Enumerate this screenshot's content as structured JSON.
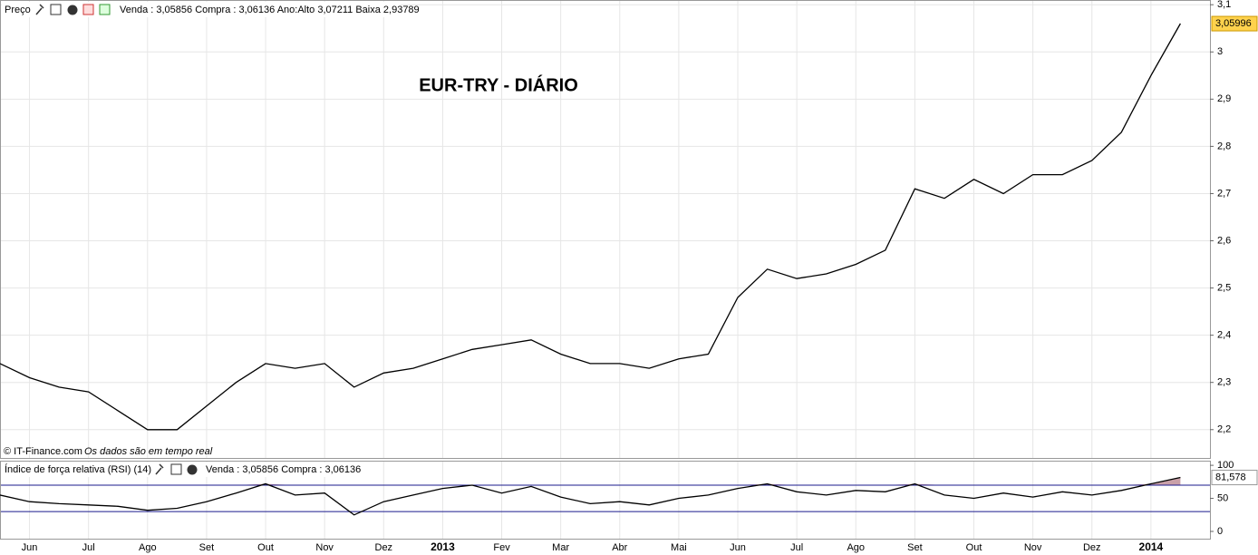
{
  "chart_data": {
    "type": "line",
    "title": "EUR-TRY - DIÁRIO",
    "panel_label": "Preço",
    "quote_text": "Venda : 3,05856 Compra : 3,06136 Ano:Alto 3,07211 Baixa 2,93789",
    "copyright": "© IT-Finance.com",
    "realtime_note": "Os dados são em tempo real",
    "categories": [
      null,
      "Jun",
      null,
      "Jul",
      null,
      "Ago",
      null,
      "Set",
      null,
      "Out",
      null,
      "Nov",
      null,
      "Dez",
      null,
      "2013",
      null,
      "Fev",
      null,
      "Mar",
      null,
      "Abr",
      null,
      "Mai",
      null,
      "Jun",
      null,
      "Jul",
      null,
      "Ago",
      null,
      "Set",
      null,
      "Out",
      null,
      "Nov",
      null,
      "Dez",
      null,
      "2014",
      null
    ],
    "series": [
      {
        "name": "EUR-TRY",
        "color": "#000000",
        "values": [
          2.34,
          2.31,
          2.29,
          2.28,
          2.24,
          2.2,
          2.2,
          2.25,
          2.3,
          2.34,
          2.33,
          2.34,
          2.29,
          2.32,
          2.33,
          2.35,
          2.37,
          2.38,
          2.39,
          2.36,
          2.34,
          2.34,
          2.33,
          2.35,
          2.36,
          2.48,
          2.54,
          2.52,
          2.53,
          2.55,
          2.58,
          2.71,
          2.69,
          2.73,
          2.7,
          2.74,
          2.74,
          2.77,
          2.83,
          2.95,
          3.06
        ]
      }
    ],
    "ylim": [
      2.14,
      3.11
    ],
    "yticks": [
      {
        "value": 2.2,
        "label": "2,2"
      },
      {
        "value": 2.3,
        "label": "2,3"
      },
      {
        "value": 2.4,
        "label": "2,4"
      },
      {
        "value": 2.5,
        "label": "2,5"
      },
      {
        "value": 2.6,
        "label": "2,6"
      },
      {
        "value": 2.7,
        "label": "2,7"
      },
      {
        "value": 2.8,
        "label": "2,8"
      },
      {
        "value": 2.9,
        "label": "2,9"
      },
      {
        "value": 3,
        "label": "3"
      },
      {
        "value": 3.1,
        "label": "3,1"
      }
    ],
    "last_price": {
      "value": 3.05996,
      "label": "3,05996"
    },
    "grid": true,
    "rsi": {
      "title": "Índice de força relativa (RSI) (14)",
      "quote_text": "Venda : 3,05856 Compra : 3,06136",
      "color": "#000000",
      "level_color": "#1a1a8c",
      "fill_color": "#c9a0a8",
      "values": [
        55,
        45,
        42,
        40,
        38,
        32,
        35,
        45,
        58,
        72,
        55,
        58,
        25,
        45,
        55,
        65,
        70,
        58,
        68,
        52,
        42,
        45,
        40,
        50,
        55,
        65,
        72,
        60,
        55,
        62,
        60,
        72,
        55,
        50,
        58,
        52,
        60,
        55,
        62,
        72,
        81.578
      ],
      "levels": [
        30,
        70
      ],
      "ylim": [
        -11,
        107
      ],
      "yticks": [
        0,
        50,
        100
      ],
      "last_value": {
        "value": 81.578,
        "label": "81,578"
      }
    }
  }
}
